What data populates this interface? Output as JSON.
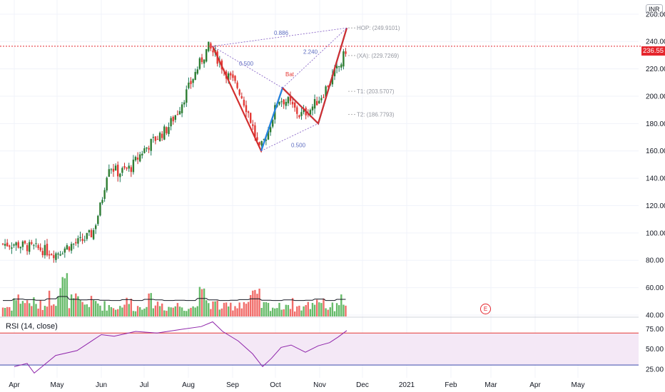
{
  "currency": "INR",
  "last_price": "236.55",
  "event_marker": "E",
  "chart_data": {
    "type": "candlestick",
    "y_range": [
      40,
      262
    ],
    "price_ticks": [
      "260.00",
      "240.00",
      "220.00",
      "200.00",
      "180.00",
      "160.00",
      "140.00",
      "120.00",
      "100.00",
      "80.00",
      "60.00",
      "40.00"
    ],
    "x_ticks": [
      "Apr",
      "May",
      "Jun",
      "Jul",
      "Aug",
      "Sep",
      "Oct",
      "Nov",
      "Dec",
      "2021",
      "Feb",
      "Mar",
      "Apr",
      "May"
    ],
    "price_path": [
      [
        "2020-04-01",
        92
      ],
      [
        "2020-04-10",
        90
      ],
      [
        "2020-04-20",
        88
      ],
      [
        "2020-04-30",
        85
      ],
      [
        "2020-05-08",
        90
      ],
      [
        "2020-05-18",
        94
      ],
      [
        "2020-05-26",
        100
      ],
      [
        "2020-06-01",
        122
      ],
      [
        "2020-06-06",
        150
      ],
      [
        "2020-06-13",
        144
      ],
      [
        "2020-06-22",
        148
      ],
      [
        "2020-06-30",
        160
      ],
      [
        "2020-07-08",
        168
      ],
      [
        "2020-07-17",
        176
      ],
      [
        "2020-07-25",
        190
      ],
      [
        "2020-08-02",
        208
      ],
      [
        "2020-08-08",
        222
      ],
      [
        "2020-08-15",
        236
      ],
      [
        "2020-08-20",
        230
      ],
      [
        "2020-08-28",
        216
      ],
      [
        "2020-09-05",
        206
      ],
      [
        "2020-09-12",
        188
      ],
      [
        "2020-09-20",
        160
      ],
      [
        "2020-09-26",
        175
      ],
      [
        "2020-10-03",
        198
      ],
      [
        "2020-10-10",
        196
      ],
      [
        "2020-10-18",
        186
      ],
      [
        "2020-10-25",
        190
      ],
      [
        "2020-11-02",
        200
      ],
      [
        "2020-11-10",
        214
      ],
      [
        "2020-11-16",
        224
      ],
      [
        "2020-11-20",
        236
      ]
    ],
    "volume_levels": [
      0.3,
      0.55,
      0.45,
      0.35,
      0.6,
      1,
      0.5,
      0.4,
      0.45,
      0.35,
      0.3,
      0.45,
      0.3,
      0.5,
      0.4,
      0.3,
      0.35,
      0.3,
      0.65,
      0.4,
      0.3,
      0.35,
      0.45,
      0.6,
      0.35,
      0.3,
      0.4,
      0.3,
      0.35,
      0.55,
      0.3,
      0.5
    ],
    "pattern": {
      "name": "Bat",
      "points": [
        [
          "2020-08-18",
          236.5
        ],
        [
          "2020-09-21",
          160
        ],
        [
          "2020-10-06",
          206
        ],
        [
          "2020-10-31",
          180
        ],
        [
          "2020-11-20",
          249.9
        ]
      ],
      "ratios": [
        "0.886",
        "0.500",
        "2.240",
        "0.500"
      ],
      "levels": [
        {
          "label": "HOP: (249.9101)",
          "value": 249.91
        },
        {
          "label": "(XA): (229.7269)",
          "value": 229.73
        },
        {
          "label": "T1: (203.5707)",
          "value": 203.57
        },
        {
          "label": "T2: (186.7793)",
          "value": 186.78
        }
      ]
    },
    "rsi": {
      "title": "RSI (14, close)",
      "ticks": [
        "75.00",
        "50.00",
        "25.00"
      ],
      "upper": 70,
      "lower": 30,
      "path": [
        [
          "2020-04-01",
          28
        ],
        [
          "2020-04-10",
          32
        ],
        [
          "2020-04-15",
          20
        ],
        [
          "2020-04-30",
          42
        ],
        [
          "2020-05-15",
          48
        ],
        [
          "2020-06-01",
          68
        ],
        [
          "2020-06-10",
          66
        ],
        [
          "2020-06-25",
          72
        ],
        [
          "2020-07-10",
          70
        ],
        [
          "2020-07-25",
          74
        ],
        [
          "2020-08-10",
          78
        ],
        [
          "2020-08-18",
          84
        ],
        [
          "2020-08-25",
          72
        ],
        [
          "2020-09-05",
          60
        ],
        [
          "2020-09-15",
          44
        ],
        [
          "2020-09-22",
          28
        ],
        [
          "2020-09-28",
          38
        ],
        [
          "2020-10-05",
          52
        ],
        [
          "2020-10-12",
          55
        ],
        [
          "2020-10-22",
          46
        ],
        [
          "2020-10-31",
          54
        ],
        [
          "2020-11-08",
          58
        ],
        [
          "2020-11-14",
          65
        ],
        [
          "2020-11-20",
          73
        ]
      ]
    }
  }
}
